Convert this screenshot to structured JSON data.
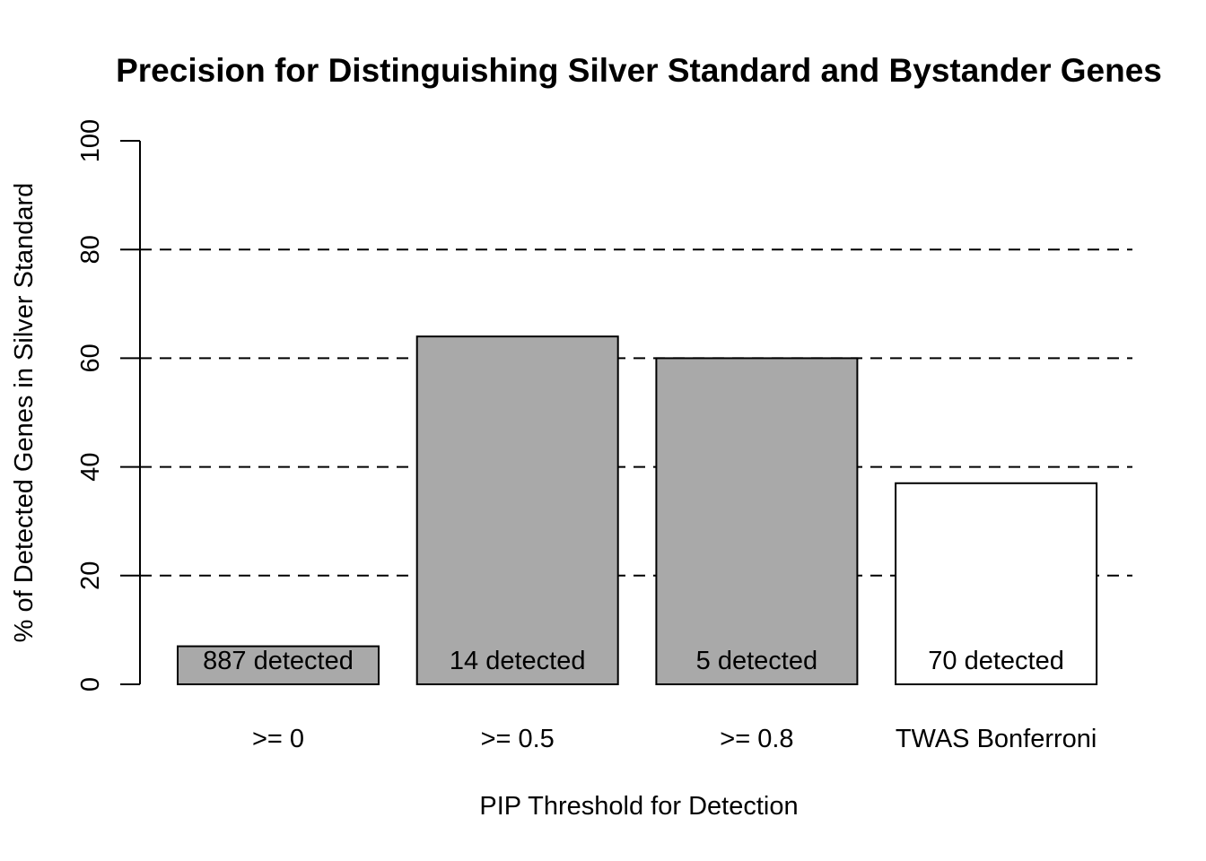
{
  "page": {
    "background_color": "#FFFFFF",
    "text_color": "#000000"
  },
  "chart_data": {
    "type": "bar",
    "title": "Precision for Distinguishing Silver Standard and Bystander Genes",
    "xlabel": "PIP Threshold for Detection",
    "ylabel": "% of Detected Genes in Silver Standard",
    "categories": [
      ">= 0",
      ">= 0.5",
      ">= 0.8",
      "TWAS Bonferroni"
    ],
    "values": [
      7,
      64,
      60,
      37
    ],
    "bar_labels": [
      "887 detected",
      "14 detected",
      "5 detected",
      "70 detected"
    ],
    "bar_fill_colors": [
      "#A9A9A9",
      "#A9A9A9",
      "#A9A9A9",
      "#FFFFFF"
    ],
    "bar_border_color": "#000000",
    "ylim": [
      0,
      100
    ],
    "yticks": [
      0,
      20,
      40,
      60,
      80,
      100
    ],
    "gridlines": {
      "values": [
        20,
        40,
        60,
        80
      ],
      "style": "dashed",
      "color": "#000000"
    },
    "legend": "none",
    "grid_behind_bars": false
  }
}
